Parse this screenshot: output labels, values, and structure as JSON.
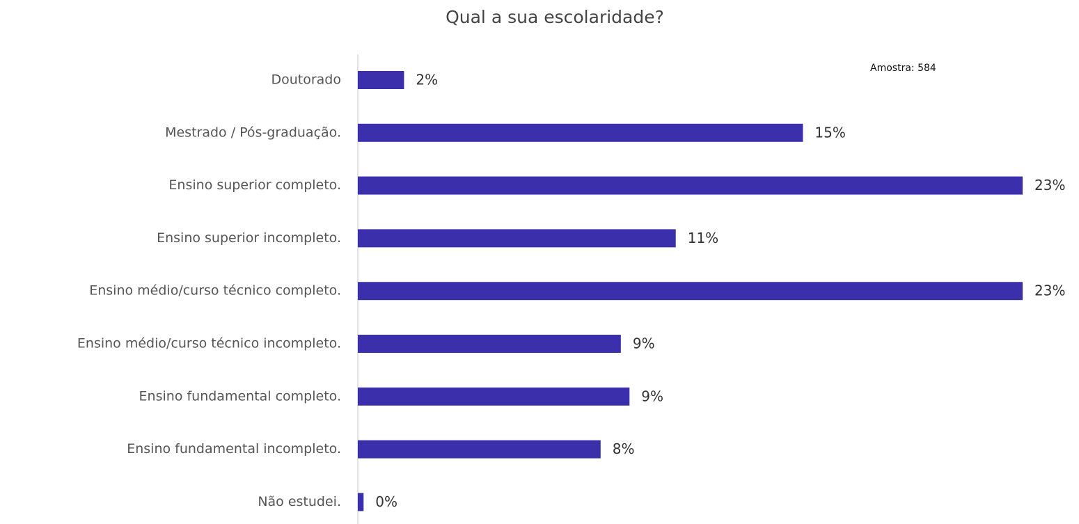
{
  "chart_data": {
    "type": "barh",
    "title": "Qual a sua escolaridade?",
    "annotation": "Amostra: 584",
    "categories": [
      "Doutorado",
      "Mestrado / Pós-graduação.",
      "Ensino superior completo.",
      "Ensino superior incompleto.",
      "Ensino médio/curso técnico completo.",
      "Ensino médio/curso técnico incompleto.",
      "Ensino fundamental completo.",
      "Ensino fundamental incompleto.",
      "Não estudei."
    ],
    "values": [
      1.6,
      15.4,
      23.0,
      11.0,
      23.0,
      9.1,
      9.4,
      8.4,
      0.2
    ],
    "value_labels": [
      "2%",
      "15%",
      "23%",
      "11%",
      "23%",
      "9%",
      "9%",
      "8%",
      "0%"
    ],
    "color": "#3b2fac"
  }
}
